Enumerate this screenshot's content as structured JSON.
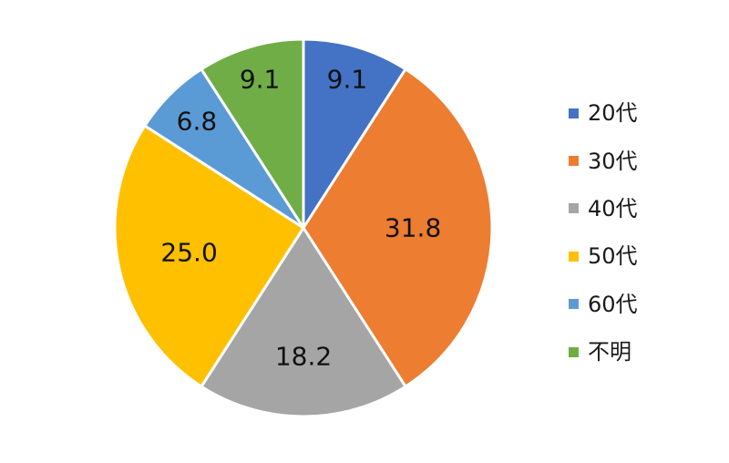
{
  "chart_data": {
    "type": "pie",
    "categories": [
      "20代",
      "30代",
      "40代",
      "50代",
      "60代",
      "不明"
    ],
    "values": [
      9.1,
      31.8,
      18.2,
      25.0,
      6.8,
      9.1
    ],
    "data_labels": [
      "9.1",
      "31.8",
      "18.2",
      "25.0",
      "6.8",
      "9.1"
    ],
    "colors": [
      "#4472C4",
      "#ED7D31",
      "#A5A5A5",
      "#FFC000",
      "#5B9BD5",
      "#70AD47"
    ],
    "start_angle": "12 o'clock",
    "direction": "clockwise",
    "legend_position": "right"
  }
}
